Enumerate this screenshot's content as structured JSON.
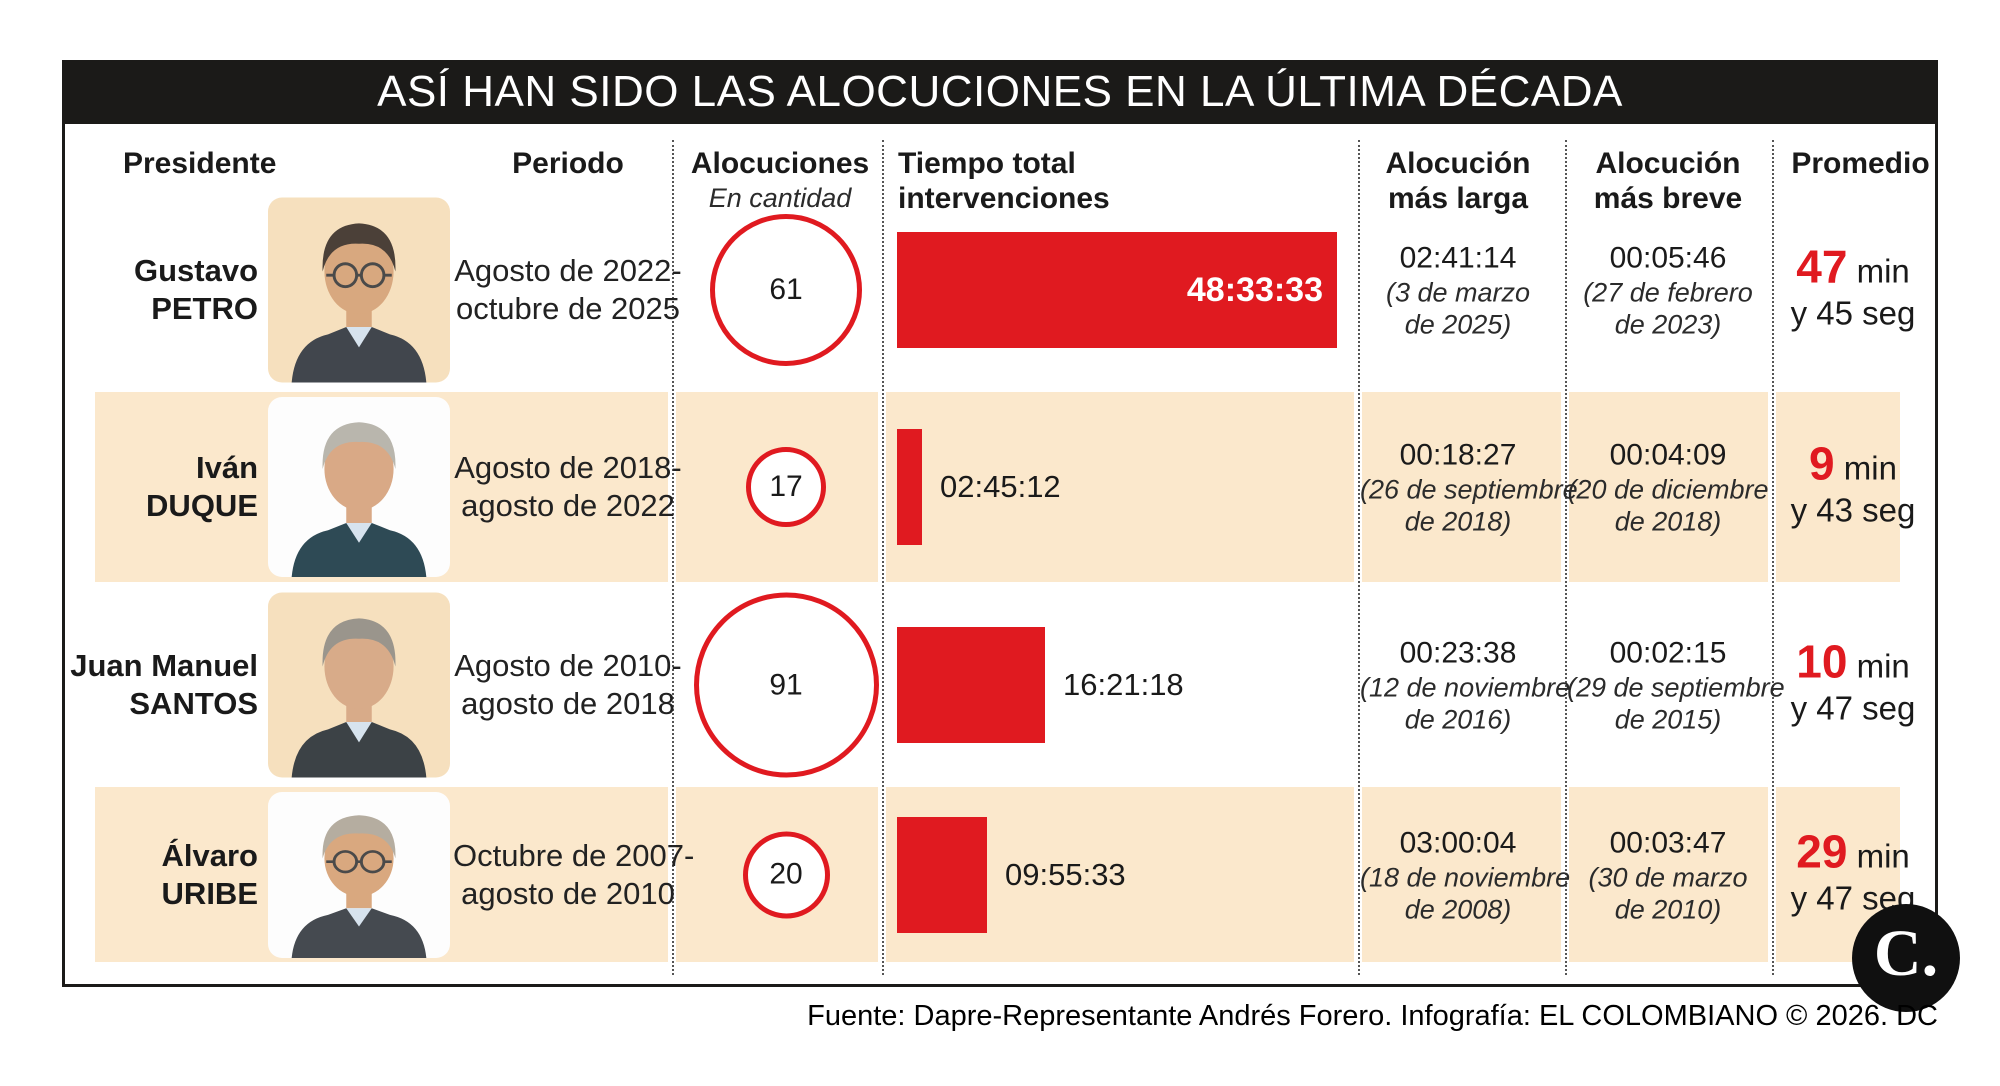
{
  "title": "ASÍ HAN SIDO LAS ALOCUCIONES EN LA ÚLTIMA DÉCADA",
  "source_line": "Fuente: Dapre-Representante Andrés Forero. Infografía: EL COLOMBIANO © 2026. DC",
  "logo_text": "C.",
  "colors": {
    "accent_red": "#e01a20",
    "band_peach": "#fbe8cc",
    "title_bg": "#1b1a18",
    "ink": "#1a1a1a"
  },
  "columns": {
    "presidente": "Presidente",
    "periodo": "Periodo",
    "alocuciones": "Alocuciones",
    "alocuciones_sub": "En cantidad",
    "tiempo_line1": "Tiempo total",
    "tiempo_line2": "intervenciones",
    "larga_line1": "Alocución",
    "larga_line2": "más larga",
    "breve_line1": "Alocución",
    "breve_line2": "más breve",
    "promedio": "Promedio"
  },
  "rows": [
    {
      "name_line1": "Gustavo",
      "name_line2": "PETRO",
      "periodo_line1": "Agosto de 2022-",
      "periodo_line2": "octubre de 2025",
      "alocuciones": "61",
      "tiempo_total": "48:33:33",
      "larga_time": "02:41:14",
      "larga_date1": "(3 de marzo",
      "larga_date2": "de 2025)",
      "breve_time": "00:05:46",
      "breve_date1": "(27 de febrero",
      "breve_date2": "de 2023)",
      "promedio_min": "47",
      "promedio_min_label": "min",
      "promedio_seg": "y 45 seg",
      "avatar": {
        "bg": "#f6e0be",
        "hair": "#4b4038",
        "skin": "#d8a87f",
        "suit": "#41464d",
        "glasses": true
      }
    },
    {
      "name_line1": "Iván",
      "name_line2": "DUQUE",
      "periodo_line1": "Agosto de 2018-",
      "periodo_line2": "agosto de 2022",
      "alocuciones": "17",
      "tiempo_total": "02:45:12",
      "larga_time": "00:18:27",
      "larga_date1": "(26 de septiembre",
      "larga_date2": "de 2018)",
      "breve_time": "00:04:09",
      "breve_date1": "(20 de diciembre",
      "breve_date2": "de 2018)",
      "promedio_min": "9",
      "promedio_min_label": "min",
      "promedio_seg": "y 43 seg",
      "avatar": {
        "bg": "#fdfdfd",
        "hair": "#b9b6ad",
        "skin": "#d9a986",
        "suit": "#2e4a55",
        "glasses": false
      }
    },
    {
      "name_line1": "Juan Manuel",
      "name_line2": "SANTOS",
      "periodo_line1": "Agosto de 2010-",
      "periodo_line2": "agosto de 2018",
      "alocuciones": "91",
      "tiempo_total": "16:21:18",
      "larga_time": "00:23:38",
      "larga_date1": "(12 de noviembre",
      "larga_date2": "de 2016)",
      "breve_time": "00:02:15",
      "breve_date1": "(29 de septiembre",
      "breve_date2": "de 2015)",
      "promedio_min": "10",
      "promedio_min_label": "min",
      "promedio_seg": "y 47 seg",
      "avatar": {
        "bg": "#f6e0be",
        "hair": "#9a958c",
        "skin": "#d8ab89",
        "suit": "#3c4246",
        "glasses": false
      }
    },
    {
      "name_line1": "Álvaro",
      "name_line2": "URIBE",
      "periodo_line1": "Octubre de 2007-",
      "periodo_line2": "agosto de 2010",
      "alocuciones": "20",
      "tiempo_total": "09:55:33",
      "larga_time": "03:00:04",
      "larga_date1": "(18 de noviembre",
      "larga_date2": "de 2008)",
      "breve_time": "00:03:47",
      "breve_date1": "(30 de marzo",
      "breve_date2": "de 2010)",
      "promedio_min": "29",
      "promedio_min_label": "min",
      "promedio_seg": "y 47 seg",
      "avatar": {
        "bg": "#fdfdfd",
        "hair": "#b5ada0",
        "skin": "#d9a87f",
        "suit": "#454a50",
        "glasses": true
      }
    }
  ],
  "chart_data": {
    "type": "table",
    "title": "ASÍ HAN SIDO LAS ALOCUCIONES EN LA ÚLTIMA DÉCADA",
    "columns": [
      "Presidente",
      "Periodo",
      "Alocuciones (en cantidad)",
      "Tiempo total intervenciones",
      "Alocución más larga",
      "Alocución más breve",
      "Promedio"
    ],
    "rows": [
      [
        "Gustavo Petro",
        "Agosto de 2022-octubre de 2025",
        61,
        "48:33:33",
        "02:41:14 (3 de marzo de 2025)",
        "00:05:46 (27 de febrero de 2023)",
        "47 min y 45 seg"
      ],
      [
        "Iván Duque",
        "Agosto de 2018-agosto de 2022",
        17,
        "02:45:12",
        "00:18:27 (26 de septiembre de 2018)",
        "00:04:09 (20 de diciembre de 2018)",
        "9 min y 43 seg"
      ],
      [
        "Juan Manuel Santos",
        "Agosto de 2010-agosto de 2018",
        91,
        "16:21:18",
        "00:23:38 (12 de noviembre de 2016)",
        "00:02:15 (29 de septiembre de 2015)",
        "10 min y 47 seg"
      ],
      [
        "Álvaro Uribe",
        "Octubre de 2007-agosto de 2010",
        20,
        "09:55:33",
        "03:00:04 (18 de noviembre de 2008)",
        "00:03:47 (30 de marzo de 2010)",
        "29 min y 47 seg"
      ]
    ],
    "notes": {
      "bar_series": {
        "unit": "hh:mm:ss total de intervenciones",
        "values_hours": [
          48.559,
          2.753,
          16.355,
          9.926
        ]
      },
      "circle_series": {
        "unit": "cantidad de alocuciones",
        "values": [
          61,
          17,
          91,
          20
        ],
        "encoding": "área del círculo"
      }
    }
  }
}
